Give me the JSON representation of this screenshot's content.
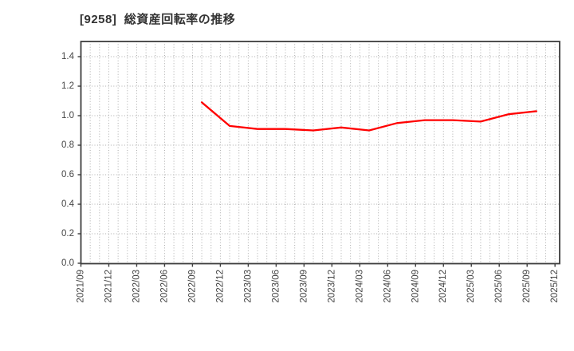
{
  "header": {
    "title": "[9258]  総資産回転率の推移"
  },
  "colors": {
    "background": "#ffffff",
    "line": "#ff0000",
    "grid": "#ababab",
    "spine": "#3d3d3d",
    "title_text": "#333333",
    "tick_text": "#444444"
  },
  "chart_data": {
    "type": "line",
    "title": "[9258] 総資産回転率の推移",
    "legend": "none",
    "grid": {
      "style": "dotted",
      "vertical_interval": "monthly",
      "horizontal_interval": 0.2
    },
    "x_axis": {
      "start": "2021/09",
      "end": "2025/12",
      "months_span": 51.5,
      "tick_interval_months": 3,
      "tick_labels": [
        "2021/09",
        "2021/12",
        "2022/03",
        "2022/06",
        "2022/09",
        "2022/12",
        "2023/03",
        "2023/06",
        "2023/09",
        "2023/12",
        "2024/03",
        "2024/06",
        "2024/09",
        "2024/12",
        "2025/03",
        "2025/06",
        "2025/09",
        "2025/12"
      ],
      "tick_label_rotation_deg": 90
    },
    "y_axis": {
      "min": 0.0,
      "max": 1.5,
      "tick_labels": [
        "0.0",
        "0.2",
        "0.4",
        "0.6",
        "0.8",
        "1.0",
        "1.2",
        "1.4"
      ]
    },
    "series": [
      {
        "name": "総資産回転率",
        "color": "#ff0000",
        "points": [
          {
            "period": "2022/09",
            "x_month_index": 13,
            "value": 1.09
          },
          {
            "period": "2022/12",
            "x_month_index": 16,
            "value": 0.93
          },
          {
            "period": "2023/03",
            "x_month_index": 19,
            "value": 0.91
          },
          {
            "period": "2023/06",
            "x_month_index": 22,
            "value": 0.91
          },
          {
            "period": "2023/09",
            "x_month_index": 25,
            "value": 0.9
          },
          {
            "period": "2023/12",
            "x_month_index": 28,
            "value": 0.92
          },
          {
            "period": "2024/03",
            "x_month_index": 31,
            "value": 0.9
          },
          {
            "period": "2024/06",
            "x_month_index": 34,
            "value": 0.95
          },
          {
            "period": "2024/09",
            "x_month_index": 37,
            "value": 0.97
          },
          {
            "period": "2024/12",
            "x_month_index": 40,
            "value": 0.97
          },
          {
            "period": "2025/03",
            "x_month_index": 43,
            "value": 0.96
          },
          {
            "period": "2025/06",
            "x_month_index": 46,
            "value": 1.01
          },
          {
            "period": "2025/09",
            "x_month_index": 49,
            "value": 1.03
          }
        ]
      }
    ]
  }
}
